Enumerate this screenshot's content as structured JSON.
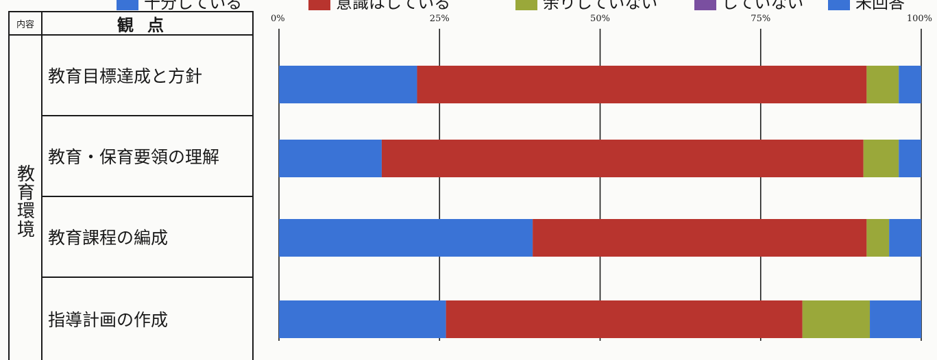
{
  "legend": [
    {
      "label": "十分している",
      "color": "#3a73d6"
    },
    {
      "label": "意識はしている",
      "color": "#b8342e"
    },
    {
      "label": "余りしていない",
      "color": "#9aa83a"
    },
    {
      "label": "していない",
      "color": "#7a4fa0"
    },
    {
      "label": "未回答",
      "color": "#3a73d6"
    }
  ],
  "table": {
    "header_naiyo": "内容",
    "header_kanten": "観点",
    "group": "教育環境",
    "rows": [
      "教育目標達成と方針",
      "教育・保育要領の理解",
      "教育課程の編成",
      "指導計画の作成"
    ]
  },
  "chart_data": {
    "type": "bar",
    "orientation": "horizontal",
    "stacked": true,
    "categories": [
      "教育目標達成と方針",
      "教育・保育要領の理解",
      "教育課程の編成",
      "指導計画の作成"
    ],
    "series": [
      {
        "name": "十分している",
        "color": "#3a73d6",
        "values": [
          21.5,
          16,
          39.5,
          26
        ]
      },
      {
        "name": "意識はしている",
        "color": "#b8342e",
        "values": [
          70,
          75,
          52,
          55.5
        ]
      },
      {
        "name": "余りしていない",
        "color": "#9aa83a",
        "values": [
          5,
          5.5,
          3.5,
          10.5
        ]
      },
      {
        "name": "していない",
        "color": "#7a4fa0",
        "values": [
          0,
          0,
          0,
          0
        ]
      },
      {
        "name": "未回答",
        "color": "#3a73d6",
        "values": [
          3.5,
          3.5,
          5,
          8
        ]
      }
    ],
    "xlim": [
      0,
      100
    ],
    "ticks": [
      "0%",
      "25%",
      "50%",
      "75%",
      "100%"
    ],
    "grid": true
  }
}
